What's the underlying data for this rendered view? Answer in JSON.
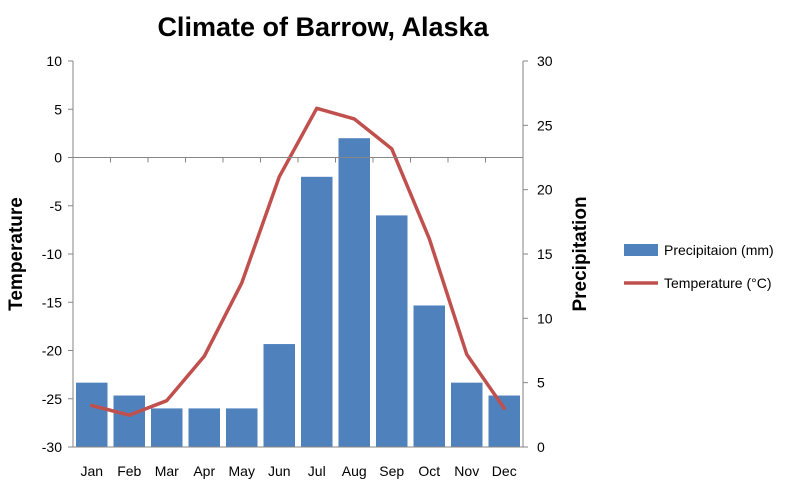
{
  "chart_data": {
    "type": "bar",
    "title": "Climate of Barrow, Alaska",
    "categories": [
      "Jan",
      "Feb",
      "Mar",
      "Apr",
      "May",
      "Jun",
      "Jul",
      "Aug",
      "Sep",
      "Oct",
      "Nov",
      "Dec"
    ],
    "series": [
      {
        "name": "Precipitaion (mm)",
        "type": "bar",
        "axis": "right",
        "color": "#4f81bd",
        "values": [
          5,
          4,
          3,
          3,
          3,
          8,
          21,
          24,
          18,
          11,
          5,
          4
        ]
      },
      {
        "name": "Temperature (°C)",
        "type": "line",
        "axis": "left",
        "color": "#c0504d",
        "values": [
          -25.7,
          -26.7,
          -25.2,
          -20.6,
          -13.0,
          -2.0,
          5.1,
          4.0,
          0.9,
          -8.4,
          -20.4,
          -26.0
        ]
      }
    ],
    "ylabel": "Temperature",
    "y2label": "Precipitation",
    "ylim": [
      -30,
      10
    ],
    "y2lim": [
      0,
      30
    ],
    "yticks": [
      "10",
      "5",
      "0",
      "-5",
      "-10",
      "-15",
      "-20",
      "-25",
      "-30"
    ],
    "y2ticks": [
      "30",
      "25",
      "20",
      "15",
      "10",
      "5",
      "0"
    ],
    "grid": false,
    "legend_position": "right"
  }
}
